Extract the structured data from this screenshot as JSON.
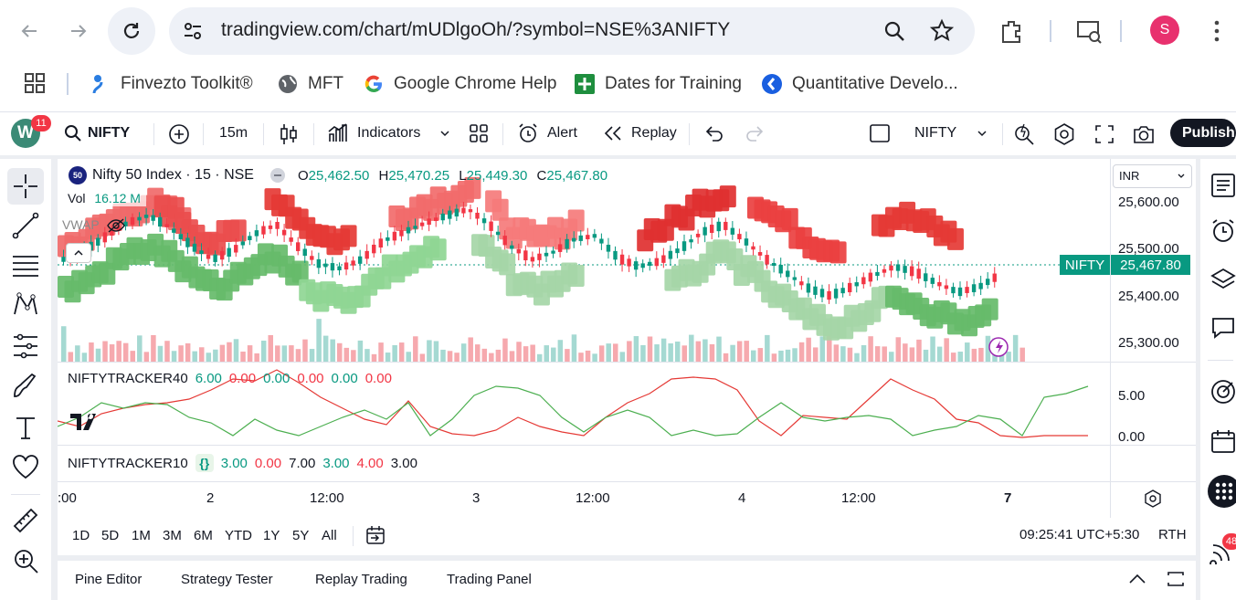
{
  "browser": {
    "url": "tradingview.com/chart/mUDlgoOh/?symbol=NSE%3ANIFTY",
    "profile_initial": "S",
    "bookmarks": [
      {
        "label": "Finvezto Toolkit®"
      },
      {
        "label": "MFT"
      },
      {
        "label": "Google Chrome Help"
      },
      {
        "label": "Dates for Training"
      },
      {
        "label": "Quantitative Develo..."
      }
    ]
  },
  "toolbar": {
    "avatar_letter": "W",
    "notifications": "11",
    "symbol": "NIFTY",
    "interval": "15m",
    "indicators_label": "Indicators",
    "alert_label": "Alert",
    "replay_label": "Replay",
    "compare_symbol": "NIFTY",
    "publish_label": "Publish"
  },
  "chart": {
    "symbol_badge": "50",
    "title": "Nifty 50 Index · 15 · NSE",
    "ohlc": {
      "o_label": "O",
      "o": "25,462.50",
      "h_label": "H",
      "h": "25,470.25",
      "l_label": "L",
      "l": "25,449.30",
      "c_label": "C",
      "c": "25,467.80"
    },
    "volume_label": "Vol",
    "volume_value": "16.12 M",
    "vwap_label": "VWAP",
    "currency": "INR",
    "price_levels": [
      "25,600.00",
      "25,500.00",
      "25,400.00",
      "25,300.00"
    ],
    "last_price_name": "NIFTY",
    "last_price": "25,467.80",
    "colors": {
      "up": "#089981",
      "down": "#f23645",
      "green_box": "#4caf50",
      "red_box": "#e53935"
    }
  },
  "indicators": {
    "tracker40": {
      "name": "NIFTYTRACKER40",
      "values": [
        "6.00",
        "0.00",
        "0.00",
        "0.00",
        "0.00",
        "0.00"
      ],
      "colors": [
        "#089981",
        "#f23645",
        "#089981",
        "#f23645",
        "#089981",
        "#f23645"
      ],
      "scale": [
        "5.00",
        "0.00"
      ]
    },
    "tracker10": {
      "name": "NIFTYTRACKER10",
      "values": [
        "3.00",
        "0.00",
        "7.00",
        "3.00",
        "4.00",
        "3.00"
      ],
      "colors": [
        "#089981",
        "#f23645",
        "#131722",
        "#089981",
        "#f23645",
        "#131722"
      ]
    }
  },
  "time_axis": [
    ":00",
    "2",
    "12:00",
    "3",
    "12:00",
    "4",
    "12:00",
    "7"
  ],
  "ranges": [
    "1D",
    "5D",
    "1M",
    "3M",
    "6M",
    "YTD",
    "1Y",
    "5Y",
    "All"
  ],
  "clock": "09:25:41 UTC+5:30",
  "session": "RTH",
  "bottom_tabs": [
    "Pine Editor",
    "Strategy Tester",
    "Replay Trading",
    "Trading Panel"
  ],
  "right_badge": "48"
}
